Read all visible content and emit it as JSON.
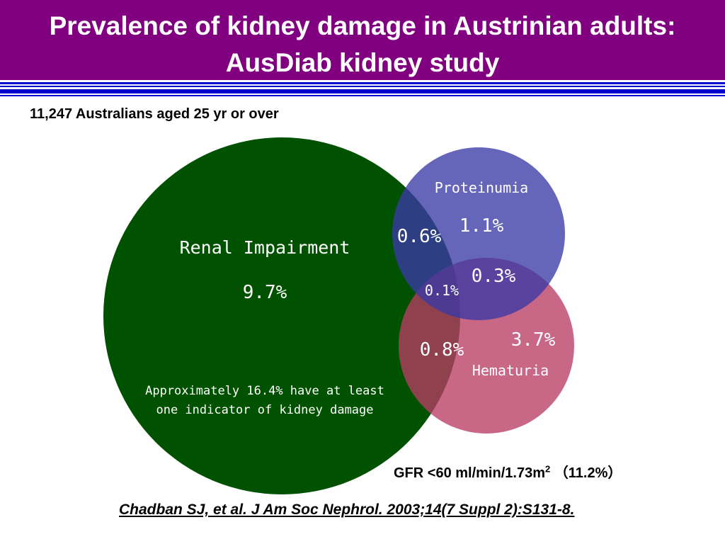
{
  "header": {
    "title_line1": "Prevalence of kidney damage in Austrinian adults:",
    "title_line2": "AusDiab kidney study"
  },
  "subtitle": "11,247 Australians aged 25 yr or over",
  "venn": {
    "renal": {
      "label": "Renal Impairment",
      "value": "9.7%",
      "color": "#005200"
    },
    "proteinuria": {
      "label": "Proteinumia",
      "value": "1.1%",
      "color": "#3a3aa6"
    },
    "hematuria": {
      "label": "Hematuria",
      "value": "3.7%",
      "color": "#b83c64"
    },
    "overlap_renal_proteinuria": "0.6%",
    "overlap_proteinuria_hematuria": "0.3%",
    "overlap_all": "0.1%",
    "overlap_renal_hematuria": "0.8%",
    "summary_line1": "Approximately 16.4% have at least",
    "summary_line2": "one indicator of kidney damage"
  },
  "gfr_note": {
    "prefix": "GFR <60 ml/min/1.73m",
    "superscript": "2",
    "suffix": "（11.2%）"
  },
  "citation": "Chadban SJ, et al. J Am Soc Nephrol. 2003;14(7 Suppl 2):S131-8."
}
